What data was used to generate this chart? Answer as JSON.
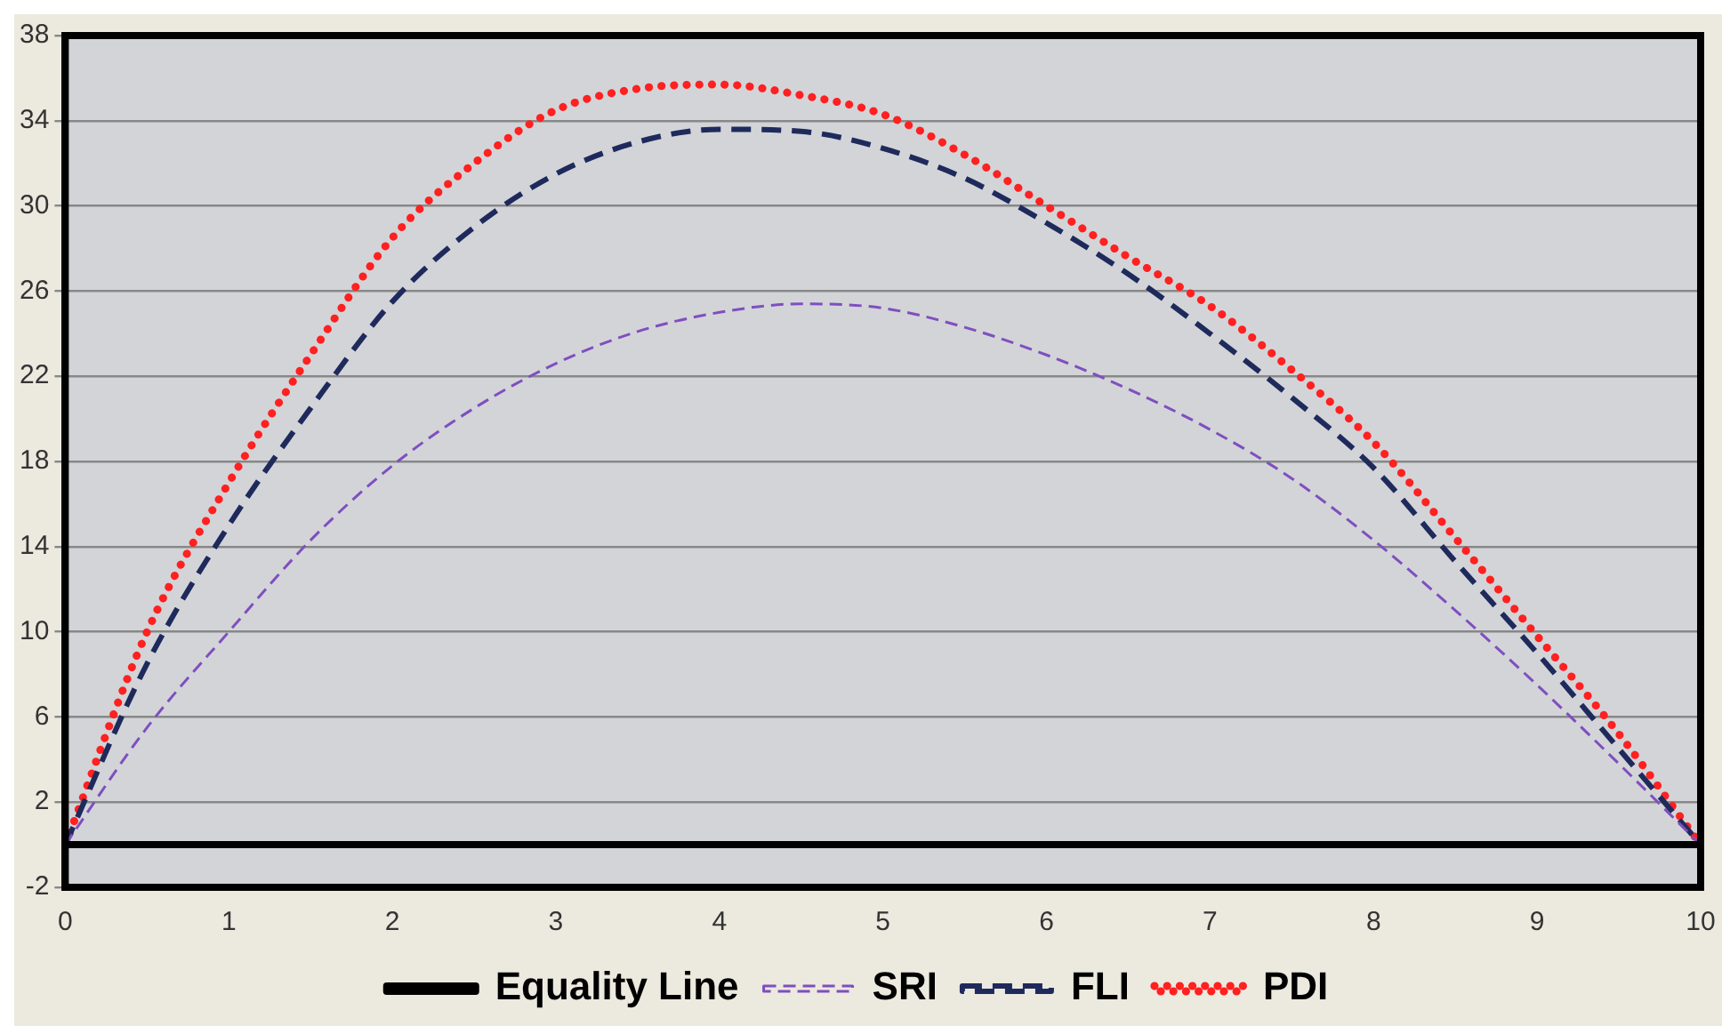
{
  "chart_data": {
    "type": "line",
    "x": [
      0,
      0.5,
      1,
      1.5,
      2,
      2.5,
      3,
      3.5,
      4,
      4.5,
      5,
      5.5,
      6,
      6.5,
      7,
      7.5,
      8,
      8.5,
      9,
      9.5,
      10
    ],
    "series": [
      {
        "name": "Equality Line",
        "color": "#000000",
        "x": [
          0,
          10
        ],
        "values": [
          0,
          0
        ],
        "line_style": "solid"
      },
      {
        "name": "SRI",
        "color": "#7f4fbf",
        "values": [
          0,
          5.5,
          10,
          14.3,
          17.8,
          20.5,
          22.6,
          24.1,
          25,
          25.4,
          25.2,
          24.3,
          23,
          21.4,
          19.5,
          17.2,
          14.3,
          11,
          7.5,
          3.8,
          0
        ],
        "line_style": "dashed"
      },
      {
        "name": "FLI",
        "color": "#1f2a5c",
        "values": [
          0,
          8.5,
          15,
          20.5,
          25.5,
          29,
          31.5,
          33,
          33.6,
          33.5,
          32.7,
          31.3,
          29.2,
          26.8,
          24,
          21,
          17.7,
          13.3,
          9,
          4.5,
          0
        ],
        "line_style": "dashed"
      },
      {
        "name": "PDI",
        "color": "#ff2020",
        "values": [
          0,
          10,
          17,
          23,
          28.5,
          32,
          34.5,
          35.5,
          35.7,
          35.2,
          34.3,
          32.4,
          30,
          27.6,
          25.3,
          22.3,
          18.9,
          14.4,
          9.8,
          5.2,
          0
        ],
        "line_style": "dotted"
      }
    ],
    "xlim": [
      0,
      10
    ],
    "xticks": [
      0,
      1,
      2,
      3,
      4,
      5,
      6,
      7,
      8,
      9,
      10
    ],
    "ylim": [
      -2,
      38
    ],
    "yticks": [
      -2,
      2,
      6,
      10,
      14,
      18,
      22,
      26,
      30,
      34,
      38
    ],
    "grid": "y",
    "legend": "bottom",
    "marker": "none"
  }
}
